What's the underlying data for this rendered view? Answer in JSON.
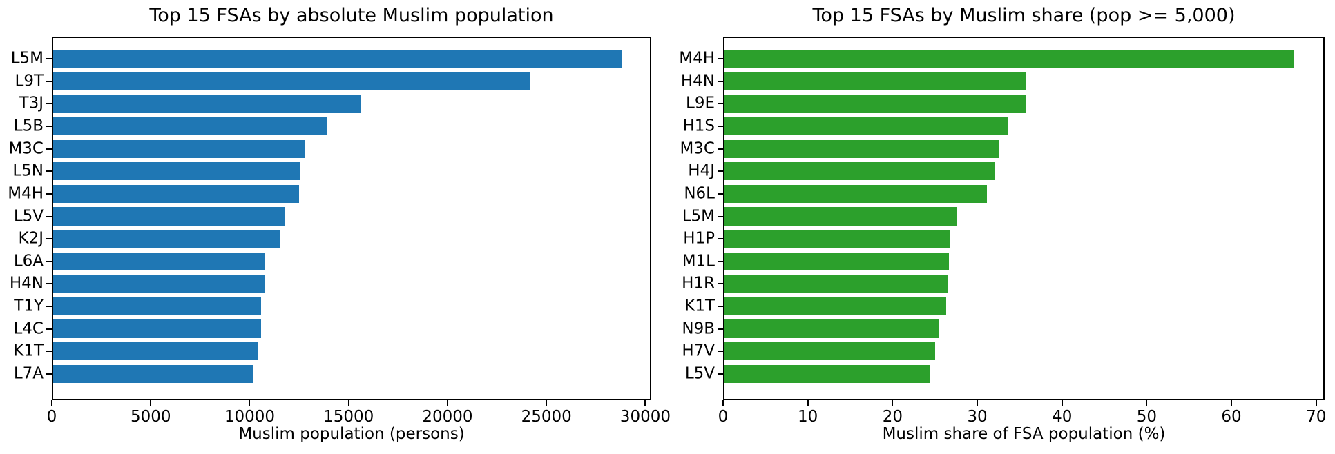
{
  "figure": {
    "background": "#ffffff",
    "text_color": "#000000"
  },
  "chart_data": [
    {
      "type": "bar",
      "orientation": "horizontal",
      "title": "Top 15 FSAs by absolute Muslim population",
      "xlabel": "Muslim population (persons)",
      "ylabel": "",
      "categories": [
        "L5M",
        "L9T",
        "T3J",
        "L5B",
        "M3C",
        "L5N",
        "M4H",
        "L5V",
        "K2J",
        "L6A",
        "H4N",
        "T1Y",
        "L4C",
        "K1T",
        "L7A"
      ],
      "values": [
        28850,
        24200,
        15650,
        13900,
        12750,
        12550,
        12480,
        11800,
        11550,
        10750,
        10720,
        10560,
        10540,
        10400,
        10170
      ],
      "bar_color": "#1f77b4",
      "xlim": [
        0,
        30300
      ],
      "xticks": [
        0,
        5000,
        10000,
        15000,
        20000,
        25000,
        30000
      ],
      "grid": false,
      "legend": null
    },
    {
      "type": "bar",
      "orientation": "horizontal",
      "title": "Top 15 FSAs by Muslim share (pop >= 5,000)",
      "xlabel": "Muslim share of FSA population (%)",
      "ylabel": "",
      "categories": [
        "M4H",
        "H4N",
        "L9E",
        "H1S",
        "M3C",
        "H4J",
        "N6L",
        "L5M",
        "H1P",
        "M1L",
        "H1R",
        "K1T",
        "N9B",
        "H7V",
        "L5V"
      ],
      "values": [
        67.6,
        35.8,
        35.7,
        33.6,
        32.5,
        32.0,
        31.1,
        27.5,
        26.7,
        26.6,
        26.5,
        26.3,
        25.4,
        25.0,
        24.3
      ],
      "bar_color": "#2ca02c",
      "xlim": [
        0,
        71
      ],
      "xticks": [
        0,
        10,
        20,
        30,
        40,
        50,
        60,
        70
      ],
      "grid": false,
      "legend": null
    }
  ]
}
